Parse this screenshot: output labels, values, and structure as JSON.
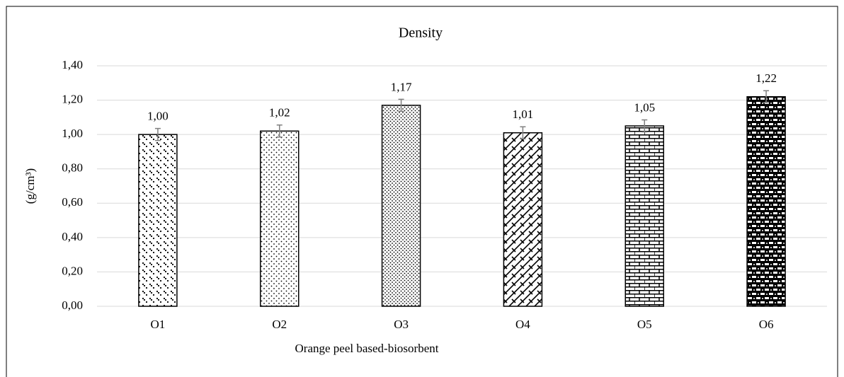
{
  "chart_data": {
    "type": "bar",
    "title": "Density",
    "x_label": "Orange peel based-biosorbent",
    "y_label": "(g/cm³)",
    "categories": [
      "O1",
      "O2",
      "O3",
      "O4",
      "O5",
      "O6"
    ],
    "values": [
      1.0,
      1.02,
      1.17,
      1.01,
      1.05,
      1.22
    ],
    "value_labels": [
      "1,00",
      "1,02",
      "1,17",
      "1,01",
      "1,05",
      "1,22"
    ],
    "errors": [
      0.035,
      0.035,
      0.035,
      0.035,
      0.035,
      0.035
    ],
    "color": "#000000",
    "error_color": "#808080",
    "ylim": [
      0,
      1.4
    ],
    "yticks": [
      {
        "value": 0,
        "label": "0,00"
      },
      {
        "value": 0.2,
        "label": "0,20"
      },
      {
        "value": 0.4,
        "label": "0,40"
      },
      {
        "value": 0.6,
        "label": "0,60"
      },
      {
        "value": 0.8,
        "label": "0,80"
      },
      {
        "value": 1.0,
        "label": "1,00"
      },
      {
        "value": 1.2,
        "label": "1,20"
      },
      {
        "value": 1.4,
        "label": "1,40"
      }
    ],
    "grid": true
  }
}
